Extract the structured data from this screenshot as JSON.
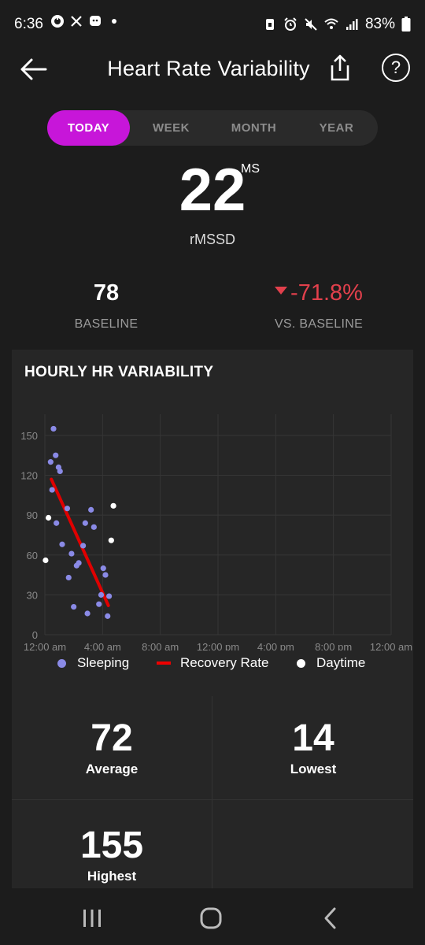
{
  "status": {
    "time": "6:36",
    "battery": "83%"
  },
  "header": {
    "title": "Heart Rate Variability"
  },
  "tabs": [
    {
      "label": "TODAY",
      "active": true
    },
    {
      "label": "WEEK",
      "active": false
    },
    {
      "label": "MONTH",
      "active": false
    },
    {
      "label": "YEAR",
      "active": false
    }
  ],
  "summary": {
    "value": "22",
    "unit": "MS",
    "metric": "rMSSD",
    "baseline_value": "78",
    "baseline_label": "BASELINE",
    "vs_value": "-71.8%",
    "vs_label": "VS. BASELINE"
  },
  "card": {
    "title": "HOURLY HR VARIABILITY"
  },
  "chart_data": {
    "type": "scatter",
    "title": "HOURLY HR VARIABILITY",
    "xlabel": "",
    "ylabel": "",
    "xlim": [
      0,
      24
    ],
    "ylim": [
      0,
      160
    ],
    "x_ticks": [
      "12:00 am",
      "4:00 am",
      "8:00 am",
      "12:00 pm",
      "4:00 pm",
      "8:00 pm",
      "12:00 am"
    ],
    "y_ticks": [
      0,
      30,
      60,
      90,
      120,
      150
    ],
    "grid": true,
    "legend_position": "bottom",
    "series": [
      {
        "name": "Sleeping",
        "color": "#8a8ae6",
        "points": [
          [
            0.4,
            130
          ],
          [
            0.5,
            109
          ],
          [
            0.6,
            155
          ],
          [
            0.75,
            135
          ],
          [
            0.8,
            84
          ],
          [
            0.95,
            126
          ],
          [
            1.05,
            123
          ],
          [
            1.2,
            68
          ],
          [
            1.55,
            95
          ],
          [
            1.65,
            43
          ],
          [
            1.85,
            61
          ],
          [
            2.0,
            21
          ],
          [
            2.2,
            52
          ],
          [
            2.35,
            54
          ],
          [
            2.65,
            67
          ],
          [
            2.8,
            84
          ],
          [
            2.95,
            16
          ],
          [
            3.2,
            94
          ],
          [
            3.4,
            81
          ],
          [
            3.75,
            23
          ],
          [
            3.9,
            30
          ],
          [
            4.05,
            50
          ],
          [
            4.2,
            45
          ],
          [
            4.35,
            14
          ],
          [
            4.45,
            29
          ]
        ]
      },
      {
        "name": "Recovery Rate",
        "color": "#e00000",
        "type": "line",
        "points": [
          [
            0.45,
            117
          ],
          [
            4.4,
            22
          ]
        ]
      },
      {
        "name": "Daytime",
        "color": "#ffffff",
        "points": [
          [
            0.05,
            56
          ],
          [
            0.25,
            88
          ],
          [
            4.6,
            71
          ],
          [
            4.75,
            97
          ]
        ]
      }
    ]
  },
  "stats": {
    "average_value": "72",
    "average_label": "Average",
    "lowest_value": "14",
    "lowest_label": "Lowest",
    "highest_value": "155",
    "highest_label": "Highest"
  }
}
